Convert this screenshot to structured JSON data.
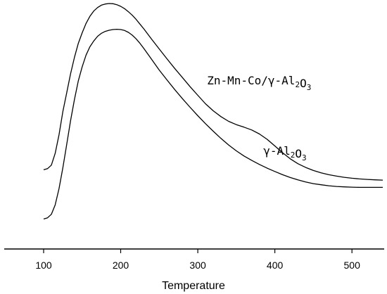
{
  "chart_data": {
    "type": "line",
    "title": "",
    "xlabel": "Temperature",
    "ylabel": "",
    "xlim": [
      100,
      540
    ],
    "ylim": [
      0,
      1
    ],
    "x_ticks": [
      100,
      200,
      300,
      400,
      500
    ],
    "x_tick_labels": [
      "100",
      "200",
      "300",
      "400",
      "500"
    ],
    "y_ticks_visible": false,
    "grid": false,
    "legend": "none",
    "series": [
      {
        "name": "Zn-Mn-Co/γ-Al2O3",
        "label_parts": [
          {
            "text": "Zn-Mn-Co/",
            "sub": false
          },
          {
            "text": "γ",
            "sub": false
          },
          {
            "text": "-Al",
            "sub": false
          },
          {
            "text": "2",
            "sub": true
          },
          {
            "text": "O",
            "sub": false
          },
          {
            "text": "3",
            "sub": true
          }
        ],
        "label_at": [
          312,
          0.655
        ],
        "x": [
          100,
          105,
          110,
          115,
          120,
          125,
          130,
          135,
          140,
          145,
          150,
          155,
          160,
          165,
          170,
          175,
          180,
          185,
          190,
          195,
          200,
          205,
          210,
          215,
          220,
          225,
          230,
          240,
          250,
          260,
          270,
          280,
          290,
          300,
          310,
          320,
          330,
          340,
          350,
          360,
          370,
          380,
          390,
          400,
          410,
          420,
          430,
          440,
          450,
          460,
          470,
          480,
          490,
          500,
          510,
          520,
          530,
          540
        ],
        "values": [
          0.29,
          0.295,
          0.31,
          0.36,
          0.44,
          0.54,
          0.62,
          0.7,
          0.77,
          0.83,
          0.875,
          0.915,
          0.945,
          0.968,
          0.983,
          0.993,
          0.998,
          1.0,
          0.999,
          0.995,
          0.988,
          0.978,
          0.965,
          0.95,
          0.932,
          0.912,
          0.892,
          0.848,
          0.806,
          0.764,
          0.723,
          0.684,
          0.645,
          0.608,
          0.572,
          0.542,
          0.517,
          0.497,
          0.483,
          0.472,
          0.46,
          0.443,
          0.42,
          0.392,
          0.363,
          0.337,
          0.316,
          0.3,
          0.287,
          0.277,
          0.269,
          0.263,
          0.258,
          0.254,
          0.251,
          0.249,
          0.247,
          0.246
        ]
      },
      {
        "name": "γ-Al2O3",
        "label_parts": [
          {
            "text": "γ",
            "sub": false
          },
          {
            "text": "-Al",
            "sub": false
          },
          {
            "text": "2",
            "sub": true
          },
          {
            "text": "O",
            "sub": false
          },
          {
            "text": "3",
            "sub": true
          }
        ],
        "label_at": [
          385,
          0.355
        ],
        "x": [
          100,
          105,
          110,
          115,
          120,
          125,
          130,
          135,
          140,
          145,
          150,
          155,
          160,
          165,
          170,
          175,
          180,
          185,
          190,
          195,
          200,
          205,
          210,
          215,
          220,
          225,
          230,
          240,
          250,
          260,
          270,
          280,
          290,
          300,
          310,
          320,
          330,
          340,
          350,
          360,
          370,
          380,
          390,
          400,
          410,
          420,
          430,
          440,
          450,
          460,
          470,
          480,
          490,
          500,
          510,
          520,
          530,
          540
        ],
        "values": [
          0.08,
          0.085,
          0.1,
          0.14,
          0.21,
          0.3,
          0.4,
          0.5,
          0.59,
          0.67,
          0.73,
          0.78,
          0.815,
          0.84,
          0.86,
          0.873,
          0.881,
          0.886,
          0.889,
          0.89,
          0.889,
          0.885,
          0.877,
          0.865,
          0.849,
          0.83,
          0.808,
          0.762,
          0.716,
          0.674,
          0.633,
          0.594,
          0.557,
          0.521,
          0.487,
          0.455,
          0.424,
          0.396,
          0.371,
          0.349,
          0.33,
          0.313,
          0.297,
          0.283,
          0.269,
          0.257,
          0.247,
          0.238,
          0.231,
          0.226,
          0.222,
          0.219,
          0.217,
          0.216,
          0.215,
          0.215,
          0.215,
          0.215
        ]
      }
    ]
  }
}
